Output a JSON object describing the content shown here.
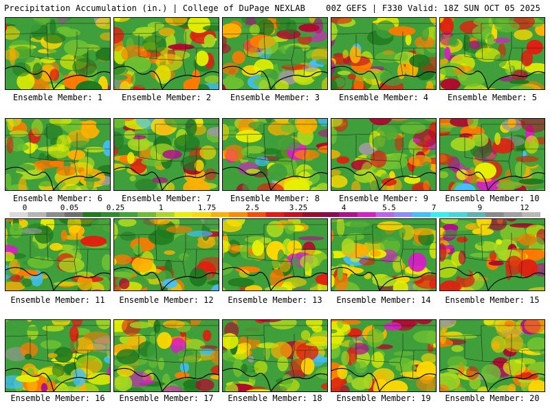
{
  "header": {
    "title_left": "Precipitation Accumulation (in.) | College of DuPage NEXLAB",
    "title_right": "00Z GEFS | F330 Valid: 18Z SUN OCT 05 2025"
  },
  "panels": [
    {
      "label": "Ensemble Member: 1"
    },
    {
      "label": "Ensemble Member: 2"
    },
    {
      "label": "Ensemble Member: 3"
    },
    {
      "label": "Ensemble Member: 4"
    },
    {
      "label": "Ensemble Member: 5"
    },
    {
      "label": "Ensemble Member: 6"
    },
    {
      "label": "Ensemble Member: 7"
    },
    {
      "label": "Ensemble Member: 8"
    },
    {
      "label": "Ensemble Member: 9"
    },
    {
      "label": "Ensemble Member: 10"
    },
    {
      "label": "Ensemble Member: 11"
    },
    {
      "label": "Ensemble Member: 12"
    },
    {
      "label": "Ensemble Member: 13"
    },
    {
      "label": "Ensemble Member: 14"
    },
    {
      "label": "Ensemble Member: 15"
    },
    {
      "label": "Ensemble Member: 16"
    },
    {
      "label": "Ensemble Member: 17"
    },
    {
      "label": "Ensemble Member: 18"
    },
    {
      "label": "Ensemble Member: 19"
    },
    {
      "label": "Ensemble Member: 20"
    }
  ],
  "colorbar": {
    "tick_labels": [
      "0",
      "0.05",
      "0.25",
      "1",
      "1.75",
      "2.5",
      "3.25",
      "4",
      "5.5",
      "7",
      "9",
      "12"
    ],
    "colors": [
      "#d9d9d9",
      "#b4b4b4",
      "#8c8c8c",
      "#6e6e6e",
      "#1f7a1f",
      "#2e8b2e",
      "#3fa535",
      "#6cc030",
      "#a8d820",
      "#e6f000",
      "#ffd800",
      "#ffb000",
      "#ff8a00",
      "#ff4a00",
      "#e61a10",
      "#c8101e",
      "#a00a28",
      "#8c0a50",
      "#b0108c",
      "#d81ec8",
      "#c060f0",
      "#8a8cff",
      "#40c0ff",
      "#30f0f0",
      "#40d8d8",
      "#5ab4b4",
      "#8a8a8a",
      "#a0a0a0",
      "#b8b8b8"
    ]
  }
}
